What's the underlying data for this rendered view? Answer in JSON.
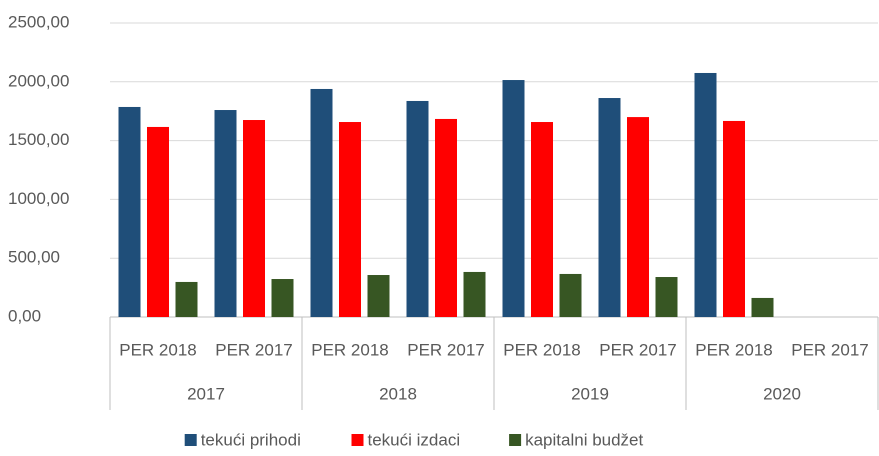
{
  "chart_data": {
    "type": "bar",
    "categories": [
      "PER 2018",
      "PER 2017",
      "PER 2018",
      "PER 2017",
      "PER 2018",
      "PER 2017",
      "PER 2018",
      "PER 2017"
    ],
    "groups": [
      "2017",
      "2018",
      "2019",
      "2020"
    ],
    "series": [
      {
        "name": "tekući prihodi",
        "color": "#1f4e79",
        "values": [
          1786,
          1760,
          1939,
          1837,
          2015,
          1862,
          2075,
          null
        ]
      },
      {
        "name": "tekući izdaci",
        "color": "#ff0000",
        "values": [
          1616,
          1675,
          1658,
          1684,
          1658,
          1700,
          1667,
          null
        ]
      },
      {
        "name": "kapitalni budžet",
        "color": "#375623",
        "values": [
          298,
          323,
          357,
          383,
          366,
          340,
          162,
          null
        ]
      }
    ],
    "ylim": [
      0,
      2500
    ],
    "yticks": [
      {
        "value": 0,
        "label": "0,00"
      },
      {
        "value": 500,
        "label": "500,00"
      },
      {
        "value": 1000,
        "label": "1000,00"
      },
      {
        "value": 1500,
        "label": "1500,00"
      },
      {
        "value": 2000,
        "label": "2000,00"
      },
      {
        "value": 2500,
        "label": "2500,00"
      }
    ],
    "grid": true,
    "legend": "bottom"
  }
}
